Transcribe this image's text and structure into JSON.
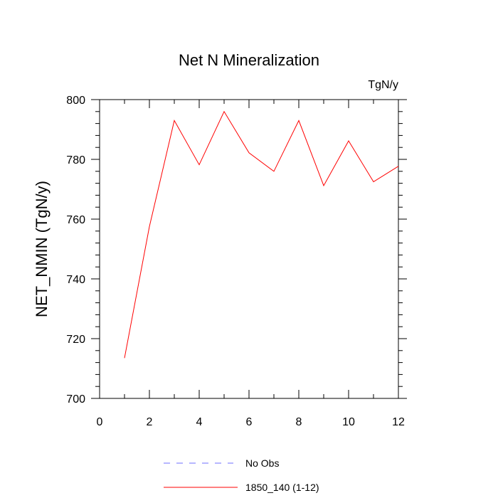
{
  "chart_data": {
    "type": "line",
    "title": "Net N Mineralization",
    "units_label": "TgN/y",
    "xlabel": "",
    "ylabel": "NET_NMIN  (TgN/y)",
    "xlim": [
      0,
      12
    ],
    "ylim": [
      700,
      800
    ],
    "x_ticks": [
      0,
      2,
      4,
      6,
      8,
      10,
      12
    ],
    "y_ticks": [
      700,
      720,
      740,
      760,
      780,
      800
    ],
    "x_minor_ticks": [
      1,
      3,
      5,
      7,
      9,
      11
    ],
    "y_minor_ticks": [
      704,
      708,
      712,
      716,
      724,
      728,
      732,
      736,
      744,
      748,
      752,
      756,
      764,
      768,
      772,
      776,
      784,
      788,
      792,
      796
    ],
    "grid": false,
    "legend_position": "bottom-center",
    "series": [
      {
        "name": "No Obs",
        "color": "#6f6fff",
        "style": "dashed",
        "x": [],
        "values": []
      },
      {
        "name": "1850_140 (1-12)",
        "color": "#ff0000",
        "style": "solid",
        "x": [
          1,
          2,
          3,
          4,
          5,
          6,
          7,
          8,
          9,
          10,
          11,
          12
        ],
        "values": [
          713.5,
          757.5,
          793,
          778.2,
          796,
          782.2,
          776,
          793,
          771.2,
          786.2,
          772.5,
          777.7
        ]
      }
    ]
  }
}
